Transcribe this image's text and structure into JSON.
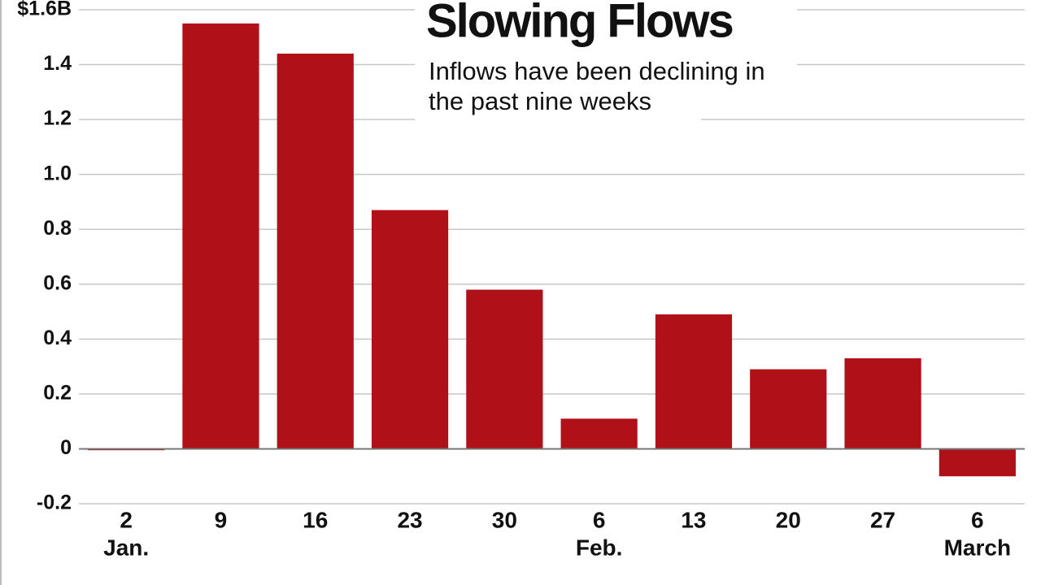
{
  "chart_data": {
    "type": "bar",
    "title": "Slowing Flows",
    "subtitle": [
      "Inflows have been declining in",
      "the past nine weeks"
    ],
    "categories": [
      "2",
      "9",
      "16",
      "23",
      "30",
      "6",
      "13",
      "20",
      "27",
      "6"
    ],
    "months": [
      "Jan.",
      null,
      null,
      null,
      null,
      "Feb.",
      null,
      null,
      null,
      "March"
    ],
    "values": [
      -0.005,
      1.55,
      1.44,
      0.87,
      0.58,
      0.11,
      0.49,
      0.29,
      0.33,
      -0.1
    ],
    "color": "#b01018",
    "ylim": [
      -0.2,
      1.6
    ],
    "yticks": [
      -0.2,
      0,
      0.2,
      0.4,
      0.6,
      0.8,
      {
        "value": 1,
        "label": "1.0"
      },
      1.2,
      1.4,
      {
        "value": 1.6,
        "label": "$1.6B"
      }
    ],
    "grid": true
  }
}
